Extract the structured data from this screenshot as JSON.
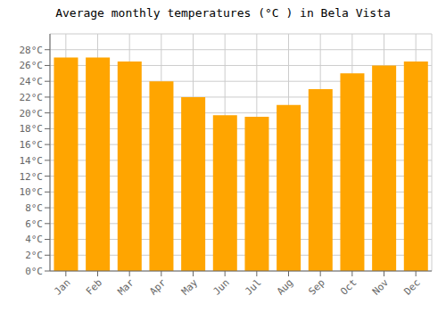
{
  "chart_data": {
    "type": "bar",
    "title": "Average monthly temperatures (°C ) in Bela Vista",
    "categories": [
      "Jan",
      "Feb",
      "Mar",
      "Apr",
      "May",
      "Jun",
      "Jul",
      "Aug",
      "Sep",
      "Oct",
      "Nov",
      "Dec"
    ],
    "values": [
      27,
      27,
      26.5,
      24,
      22,
      19.7,
      19.5,
      21,
      23,
      25,
      26,
      26.5
    ],
    "color": "#FFA500",
    "ylim": [
      0,
      30
    ],
    "yticks": [
      {
        "value": 0,
        "label": "0°C"
      },
      {
        "value": 2,
        "label": "2°C"
      },
      {
        "value": 4,
        "label": "4°C"
      },
      {
        "value": 6,
        "label": "6°C"
      },
      {
        "value": 8,
        "label": "8°C"
      },
      {
        "value": 10,
        "label": "10°C"
      },
      {
        "value": 12,
        "label": "12°C"
      },
      {
        "value": 14,
        "label": "14°C"
      },
      {
        "value": 16,
        "label": "16°C"
      },
      {
        "value": 18,
        "label": "18°C"
      },
      {
        "value": 20,
        "label": "20°C"
      },
      {
        "value": 22,
        "label": "22°C"
      },
      {
        "value": 24,
        "label": "24°C"
      },
      {
        "value": 26,
        "label": "26°C"
      },
      {
        "value": 28,
        "label": "28°C"
      }
    ],
    "grid": true
  }
}
